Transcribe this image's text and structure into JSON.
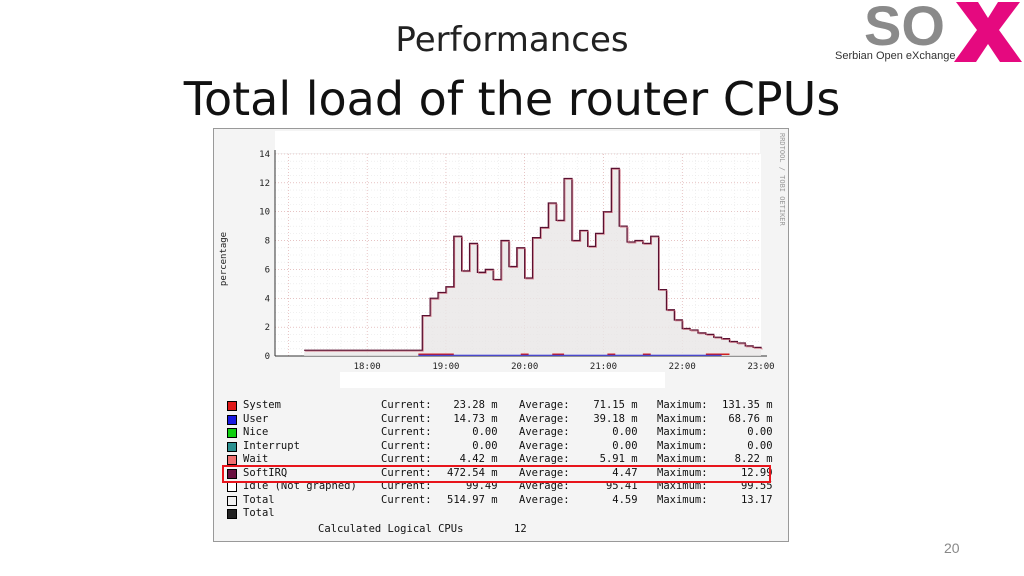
{
  "slide": {
    "subtitle": "Performances",
    "title": "Total load of the router CPUs",
    "page_number": "20",
    "logo": {
      "text": "SOX",
      "tagline": "Serbian Open eXchange",
      "gray": "#8a8a8a",
      "pink": "#e5097f"
    }
  },
  "chart_data": {
    "type": "line",
    "ylabel": "percentage",
    "watermark": "RRDTOOL / TOBI OETIKER",
    "ylim": [
      0,
      14
    ],
    "yticks": [
      "0",
      "2",
      "4",
      "6",
      "8",
      "10",
      "12",
      "14"
    ],
    "xticks": [
      "18:00",
      "19:00",
      "20:00",
      "21:00",
      "22:00",
      "23:00"
    ],
    "x_hours": [
      17.2,
      17.5,
      18.0,
      18.5,
      18.7,
      18.8,
      18.9,
      19.0,
      19.1,
      19.2,
      19.3,
      19.4,
      19.5,
      19.6,
      19.7,
      19.8,
      19.9,
      20.0,
      20.1,
      20.2,
      20.3,
      20.4,
      20.5,
      20.6,
      20.7,
      20.8,
      20.9,
      21.0,
      21.1,
      21.2,
      21.3,
      21.4,
      21.5,
      21.6,
      21.7,
      21.8,
      21.9,
      22.0,
      22.1,
      22.2,
      22.3,
      22.4,
      22.5,
      22.6,
      22.7,
      22.8,
      22.9,
      23.0
    ],
    "series": [
      {
        "name": "Total",
        "color": "#5a1030",
        "values": [
          0.4,
          0.4,
          0.4,
          0.4,
          2.8,
          4.0,
          4.4,
          4.8,
          8.3,
          5.9,
          7.8,
          5.8,
          6.0,
          5.3,
          8.0,
          6.2,
          7.5,
          5.4,
          8.2,
          8.9,
          10.6,
          9.4,
          12.3,
          8.0,
          8.7,
          7.6,
          8.5,
          10.0,
          13.0,
          9.0,
          7.9,
          8.0,
          7.8,
          8.3,
          4.6,
          3.2,
          2.5,
          1.9,
          1.8,
          1.6,
          1.5,
          1.3,
          1.2,
          1.0,
          0.9,
          0.7,
          0.6,
          0.5
        ]
      }
    ],
    "legend": [
      {
        "color": "#e01a1a",
        "label": "System",
        "current": "23.28 m",
        "average": "71.15 m",
        "maximum": "131.35 m"
      },
      {
        "color": "#1a1ae0",
        "label": "User",
        "current": "14.73 m",
        "average": "39.18 m",
        "maximum": "68.76 m"
      },
      {
        "color": "#10d010",
        "label": "Nice",
        "current": "0.00",
        "average": "0.00",
        "maximum": "0.00"
      },
      {
        "color": "#2a9090",
        "label": "Interrupt",
        "current": "0.00",
        "average": "0.00",
        "maximum": "0.00"
      },
      {
        "color": "#f07070",
        "label": "Wait",
        "current": "4.42 m",
        "average": "5.91 m",
        "maximum": "8.22 m"
      },
      {
        "color": "#6a1040",
        "label": "SoftIRQ",
        "current": "472.54 m",
        "average": "4.47",
        "maximum": "12.99"
      },
      {
        "color": "#ffffff",
        "label": "Idle (Not graphed)",
        "current": "99.49",
        "average": "95.41",
        "maximum": "99.55"
      },
      {
        "color": "#f0f0f0",
        "label": "Total",
        "current": "514.97 m",
        "average": "4.59",
        "maximum": "13.17"
      },
      {
        "color": "#222222",
        "label": "Total",
        "current": "",
        "average": "",
        "maximum": ""
      }
    ],
    "labels": {
      "current": "Current:",
      "average": "Average:",
      "maximum": "Maximum:"
    },
    "footer": {
      "label": "Calculated Logical CPUs",
      "value": "12"
    },
    "highlight_row": "SoftIRQ"
  }
}
